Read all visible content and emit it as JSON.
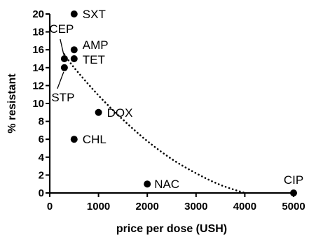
{
  "chart_data": {
    "type": "scatter",
    "xlabel": "price per dose (USH)",
    "ylabel": "% resistant",
    "xlim": [
      0,
      5000
    ],
    "ylim": [
      0,
      20
    ],
    "xticks": [
      0,
      1000,
      2000,
      3000,
      4000,
      5000
    ],
    "yticks": [
      0,
      2,
      4,
      6,
      8,
      10,
      12,
      14,
      16,
      18,
      20
    ],
    "points": [
      {
        "label": "SXT",
        "x": 500,
        "y": 20
      },
      {
        "label": "AMP",
        "x": 500,
        "y": 16
      },
      {
        "label": "TET",
        "x": 500,
        "y": 15
      },
      {
        "label": "CEP",
        "x": 300,
        "y": 15
      },
      {
        "label": "STP",
        "x": 300,
        "y": 14
      },
      {
        "label": "DOX",
        "x": 1000,
        "y": 9
      },
      {
        "label": "CHL",
        "x": 500,
        "y": 6
      },
      {
        "label": "NAC",
        "x": 2000,
        "y": 1
      },
      {
        "label": "CIP",
        "x": 5000,
        "y": 0
      }
    ],
    "trend_line": {
      "style": "dotted",
      "x": [
        300,
        500,
        1000,
        1500,
        2000,
        2500,
        3000,
        3500,
        4000
      ],
      "y": [
        15.5,
        14.0,
        10.9,
        8.2,
        5.8,
        3.8,
        2.2,
        0.9,
        0
      ]
    },
    "grid": false,
    "legend": "none"
  }
}
